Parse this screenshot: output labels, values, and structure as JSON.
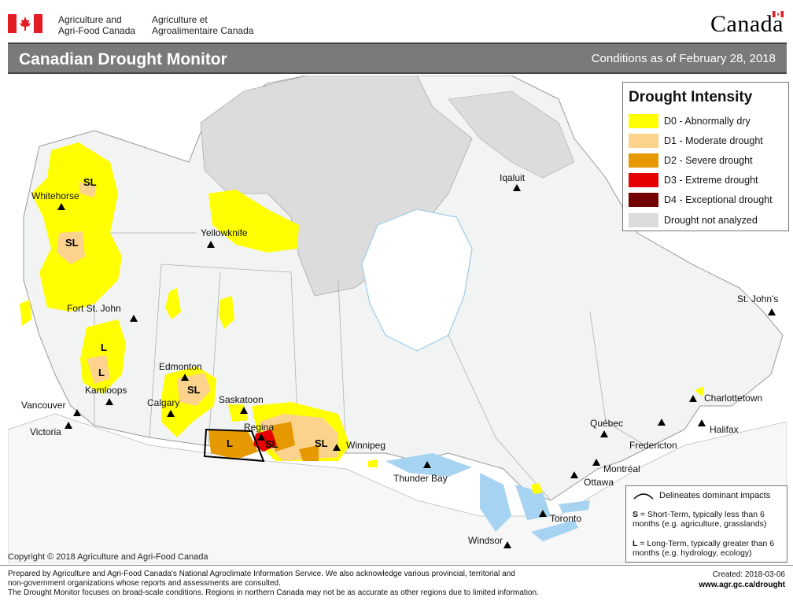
{
  "header": {
    "dept_en_line1": "Agriculture and",
    "dept_en_line2": "Agri-Food Canada",
    "dept_fr_line1": "Agriculture et",
    "dept_fr_line2": "Agroalimentaire Canada",
    "wordmark": "Canada"
  },
  "titlebar": {
    "title": "Canadian Drought Monitor",
    "conditions": "Conditions as of February 28, 2018"
  },
  "legend": {
    "title": "Drought Intensity",
    "items": [
      {
        "label": "D0 - Abnormally dry",
        "color": "#ffff00"
      },
      {
        "label": "D1 - Moderate drought",
        "color": "#fcd38c"
      },
      {
        "label": "D2 - Severe drought",
        "color": "#e69800"
      },
      {
        "label": "D3 - Extreme drought",
        "color": "#e60000"
      },
      {
        "label": "D4 - Exceptional drought",
        "color": "#730000"
      },
      {
        "label": "Drought not analyzed",
        "color": "#dcdcdc"
      }
    ]
  },
  "cities": {
    "whitehorse": "Whitehorse",
    "yellowknife": "Yellowknife",
    "iqaluit": "Iqaluit",
    "fort_st_john": "Fort St. John",
    "edmonton": "Edmonton",
    "kamloops": "Kamloops",
    "calgary": "Calgary",
    "saskatoon": "Saskatoon",
    "regina": "Regina",
    "vancouver": "Vancouver",
    "victoria": "Victoria",
    "winnipeg": "Winnipeg",
    "thunder_bay": "Thunder Bay",
    "quebec": "Québec",
    "fredericton": "Fredericton",
    "montreal": "Montréal",
    "ottawa": "Ottawa",
    "toronto": "Toronto",
    "windsor": "Windsor",
    "st_johns": "St. John's",
    "charlottetown": "Charlottetown",
    "halifax": "Halifax"
  },
  "impacts": {
    "sl": "SL",
    "l": "L"
  },
  "impact_legend": {
    "line": "Delineates dominant impacts",
    "s_key": "S",
    "s_text": " = Short-Term, typically less than 6 months (e.g. agriculture, grasslands)",
    "l_key": "L",
    "l_text": " = Long-Term, typically greater than 6 months (e.g. hydrology, ecology)"
  },
  "copyright": "Copyright © 2018 Agriculture and Agri-Food Canada",
  "footer": {
    "line1": "Prepared by Agriculture and Agri-Food Canada's National Agroclimate Information Service.  We also acknowledge various provincial, territorial and",
    "line2": "non-government organizations whose reports and assessments are consulted.",
    "line3": "The Drought Monitor focuses on broad-scale conditions.  Regions in northern Canada may not be as accurate as other regions due to limited information.",
    "created": "Created: 2018-03-06",
    "url": "www.agr.gc.ca/drought"
  }
}
